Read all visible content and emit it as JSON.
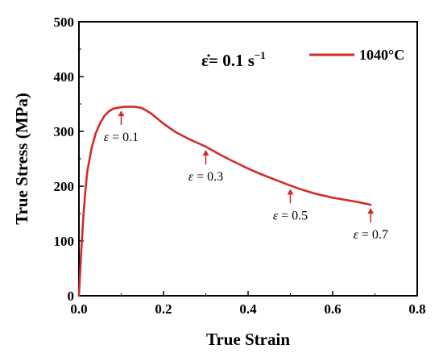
{
  "chart_data": {
    "type": "line",
    "xlabel": "True Strain",
    "ylabel": "True Stress (MPa)",
    "xlim": [
      0.0,
      0.8
    ],
    "ylim": [
      0,
      500
    ],
    "x_ticks": [
      {
        "value": 0.0,
        "label": "0.0"
      },
      {
        "value": 0.2,
        "label": "0.2"
      },
      {
        "value": 0.4,
        "label": "0.4"
      },
      {
        "value": 0.6,
        "label": "0.6"
      },
      {
        "value": 0.8,
        "label": "0.8"
      }
    ],
    "y_ticks": [
      {
        "value": 0,
        "label": "0"
      },
      {
        "value": 100,
        "label": "100"
      },
      {
        "value": 200,
        "label": "200"
      },
      {
        "value": 300,
        "label": "300"
      },
      {
        "value": 400,
        "label": "400"
      },
      {
        "value": 500,
        "label": "500"
      }
    ],
    "strain_rate_label": "ε̇= 0.1 s",
    "strain_rate_exponent": "−1",
    "legend_position": "top-right",
    "series": [
      {
        "name": "1040°C",
        "color": "#d42a2a",
        "x": [
          0.0,
          0.005,
          0.01,
          0.015,
          0.02,
          0.03,
          0.04,
          0.05,
          0.06,
          0.07,
          0.08,
          0.09,
          0.1,
          0.11,
          0.12,
          0.13,
          0.14,
          0.15,
          0.17,
          0.2,
          0.23,
          0.26,
          0.3,
          0.33,
          0.36,
          0.4,
          0.43,
          0.46,
          0.5,
          0.53,
          0.56,
          0.6,
          0.63,
          0.66,
          0.69
        ],
        "y": [
          0,
          75,
          140,
          190,
          228,
          270,
          297,
          315,
          328,
          336,
          341,
          343,
          344,
          345,
          345,
          345,
          344,
          342,
          333,
          314,
          298,
          286,
          272,
          259,
          247,
          232,
          222,
          213,
          201,
          193,
          186,
          179,
          175,
          171,
          166
        ]
      }
    ],
    "annotations": [
      {
        "symbol": "ε",
        "text": " = 0.1",
        "x": 0.1,
        "y": 344
      },
      {
        "symbol": "ε",
        "text": " = 0.3",
        "x": 0.3,
        "y": 272
      },
      {
        "symbol": "ε",
        "text": " = 0.5",
        "x": 0.5,
        "y": 201
      },
      {
        "symbol": "ε",
        "text": " = 0.7",
        "x": 0.69,
        "y": 166
      }
    ],
    "annotation_color": "#d42a2a"
  }
}
